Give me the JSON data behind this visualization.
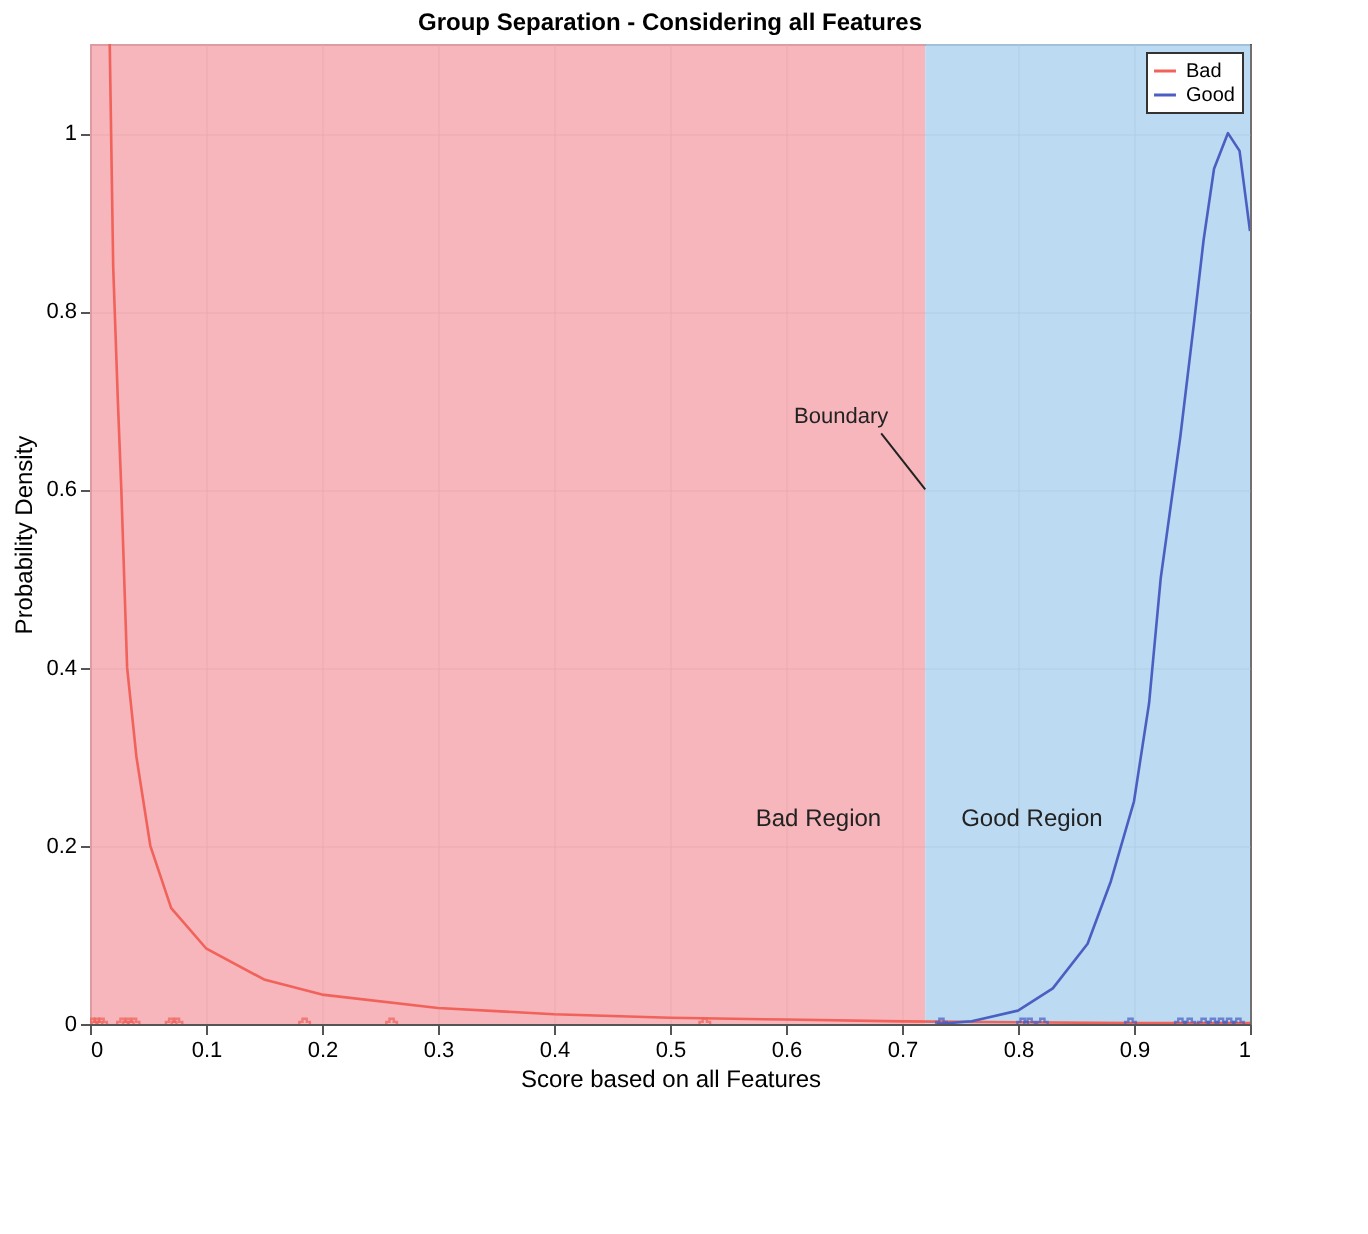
{
  "chart_data": {
    "type": "line",
    "title": "Group Separation - Considering all Features",
    "xlabel": "Score based on all Features",
    "ylabel": "Probability Density",
    "xlim": [
      0,
      1
    ],
    "ylim": [
      0,
      1.1
    ],
    "xticks": [
      0,
      0.1,
      0.2,
      0.3,
      0.4,
      0.5,
      0.6,
      0.7,
      0.8,
      0.9,
      1
    ],
    "yticks": [
      0,
      0.2,
      0.4,
      0.6,
      0.8,
      1
    ],
    "grid": true,
    "legend": "top right",
    "bands": [
      {
        "axis": "x",
        "from": 0,
        "to": 0.72,
        "label": "Bad Region",
        "color": "#f4a9b0"
      },
      {
        "axis": "x",
        "from": 0.72,
        "to": 1,
        "label": "Good Region",
        "color": "#b0d4ef"
      }
    ],
    "annotations": [
      {
        "text": "Boundary",
        "x": 0.72,
        "y": 0.6
      }
    ],
    "series": [
      {
        "name": "Bad",
        "color": "#f0625a",
        "marker": "none",
        "x": [
          0.017,
          0.02,
          0.024,
          0.027,
          0.032,
          0.04,
          0.052,
          0.07,
          0.1,
          0.15,
          0.2,
          0.3,
          0.4,
          0.5,
          0.6,
          0.7,
          0.8,
          0.9,
          1.0
        ],
        "values": [
          1.1,
          0.85,
          0.7,
          0.6,
          0.4,
          0.3,
          0.2,
          0.13,
          0.085,
          0.05,
          0.033,
          0.018,
          0.011,
          0.007,
          0.005,
          0.003,
          0.002,
          0.001,
          0.001
        ]
      },
      {
        "name": "Good",
        "color": "#4a5fc1",
        "marker": "none",
        "x": [
          0.73,
          0.76,
          0.8,
          0.83,
          0.86,
          0.88,
          0.9,
          0.913,
          0.923,
          0.94,
          0.952,
          0.96,
          0.969,
          0.981,
          0.991,
          1.0
        ],
        "values": [
          0,
          0.003,
          0.015,
          0.04,
          0.09,
          0.16,
          0.25,
          0.36,
          0.5,
          0.66,
          0.79,
          0.88,
          0.96,
          1.0,
          0.98,
          0.89
        ]
      },
      {
        "color": "#f0625a",
        "type": "scatter",
        "marker": "cross",
        "x": [
          0.002,
          0.006,
          0.01,
          0.028,
          0.033,
          0.038,
          0.07,
          0.075,
          0.185,
          0.26,
          0.53
        ],
        "values": [
          0,
          0,
          0,
          0,
          0,
          0,
          0,
          0,
          0,
          0,
          0
        ]
      },
      {
        "color": "#4a5fc1",
        "type": "scatter",
        "marker": "cross",
        "x": [
          0.734,
          0.804,
          0.81,
          0.821,
          0.897,
          0.94,
          0.948,
          0.96,
          0.968,
          0.975,
          0.982,
          0.99
        ],
        "values": [
          0,
          0,
          0,
          0,
          0,
          0,
          0,
          0,
          0,
          0,
          0,
          0
        ]
      }
    ]
  }
}
